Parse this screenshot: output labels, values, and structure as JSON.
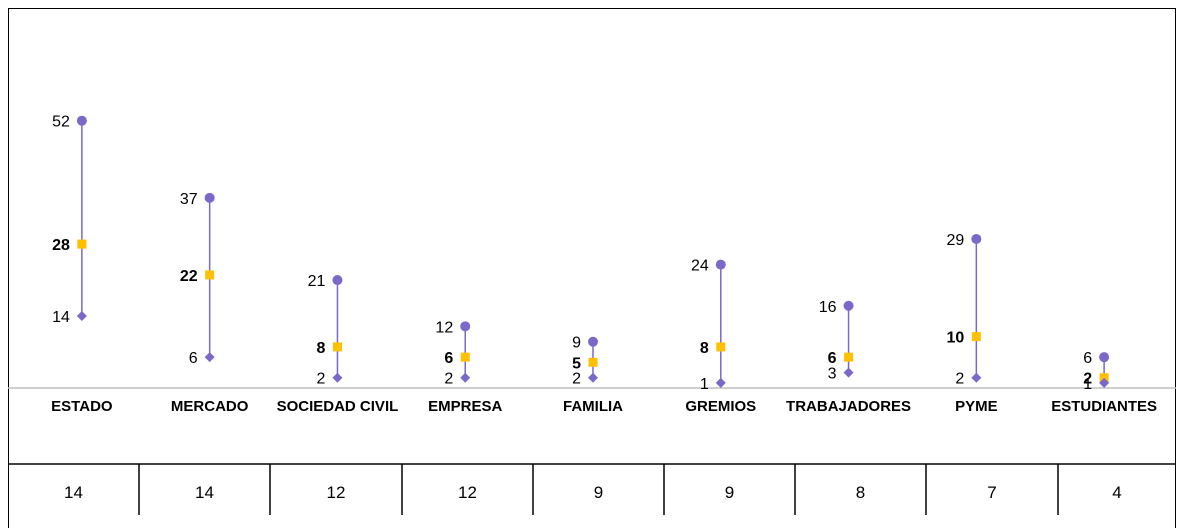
{
  "chart_data": {
    "type": "line",
    "categories": [
      "ESTADO",
      "MERCADO",
      "SOCIEDAD CIVIL",
      "EMPRESA",
      "FAMILIA",
      "GREMIOS",
      "TRABAJADORES",
      "PYME",
      "ESTUDIANTES"
    ],
    "series": [
      {
        "values": [
          52,
          37,
          21,
          12,
          9,
          24,
          16,
          29,
          6
        ],
        "color": "#7b68c8",
        "marker": "circle"
      },
      {
        "values": [
          28,
          22,
          8,
          6,
          5,
          8,
          6,
          10,
          2
        ],
        "color": "#ffc000",
        "marker": "square"
      },
      {
        "values": [
          14,
          6,
          2,
          2,
          2,
          1,
          3,
          2,
          1
        ],
        "color": "#7b68c8",
        "marker": "diamond"
      }
    ],
    "counts": [
      "14",
      "14",
      "12",
      "12",
      "9",
      "9",
      "8",
      "7",
      "4"
    ],
    "ylim": [
      0,
      62
    ],
    "grid": false,
    "colors": {
      "line": "#7b68c8",
      "marker_high": "#7b68c8",
      "marker_mid": "#ffc000",
      "marker_low": "#7b68c8",
      "axis": "#bfbfbf"
    }
  }
}
